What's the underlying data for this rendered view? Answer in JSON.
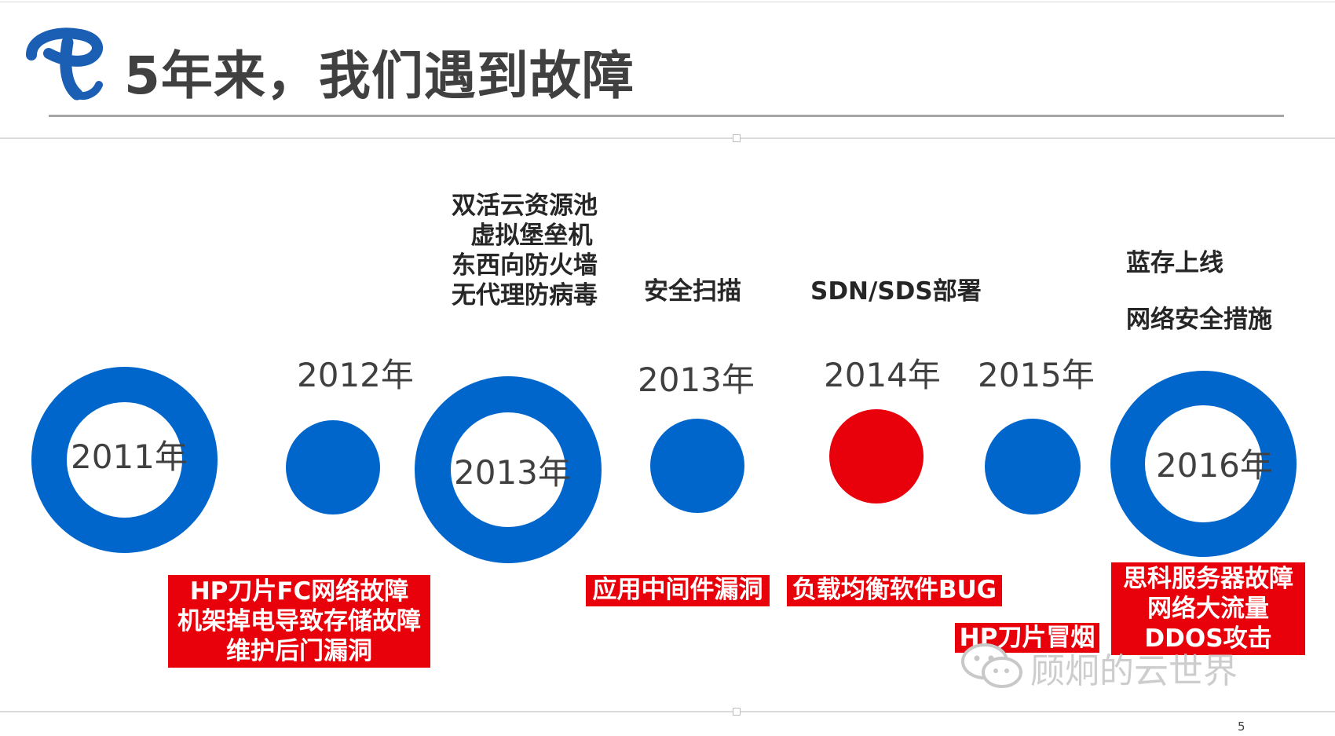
{
  "slide": {
    "title": "5年来，我们遇到故障",
    "page_number": "5"
  },
  "logo": {
    "icon": "china-telecom-logo",
    "color": "#1a5fb4"
  },
  "colors": {
    "ring_blue": "#0066cc",
    "dot_blue": "#0066cc",
    "dot_red": "#e8000b",
    "incident_red": "#e8000b"
  },
  "timeline": {
    "years": [
      {
        "label": "2011年",
        "marker": "ring"
      },
      {
        "label": "2012年",
        "marker": "dot"
      },
      {
        "label": "2013年",
        "marker": "ring"
      },
      {
        "label": "2013年",
        "marker": "dot"
      },
      {
        "label": "2014年",
        "marker": "dot-red"
      },
      {
        "label": "2015年",
        "marker": "dot"
      },
      {
        "label": "2016年",
        "marker": "ring"
      }
    ],
    "milestones": {
      "m2013a": [
        "双活云资源池",
        "虚拟堡垒机",
        "东西向防火墙",
        "无代理防病毒"
      ],
      "m2013b": "安全扫描",
      "m2014": "SDN/SDS部署",
      "m2016": [
        "蓝存上线",
        "网络安全措施"
      ]
    },
    "incidents": {
      "i2012": [
        "HP刀片FC网络故障",
        "机架掉电导致存储故障",
        "维护后门漏洞"
      ],
      "i2013": "应用中间件漏洞",
      "i2014": "负载均衡软件BUG",
      "i2015": "HP刀片冒烟",
      "i2016": [
        "思科服务器故障",
        "网络大流量",
        "DDOS攻击"
      ]
    }
  },
  "watermark": {
    "text": "顾炯的云世界",
    "icon": "wechat-icon"
  }
}
